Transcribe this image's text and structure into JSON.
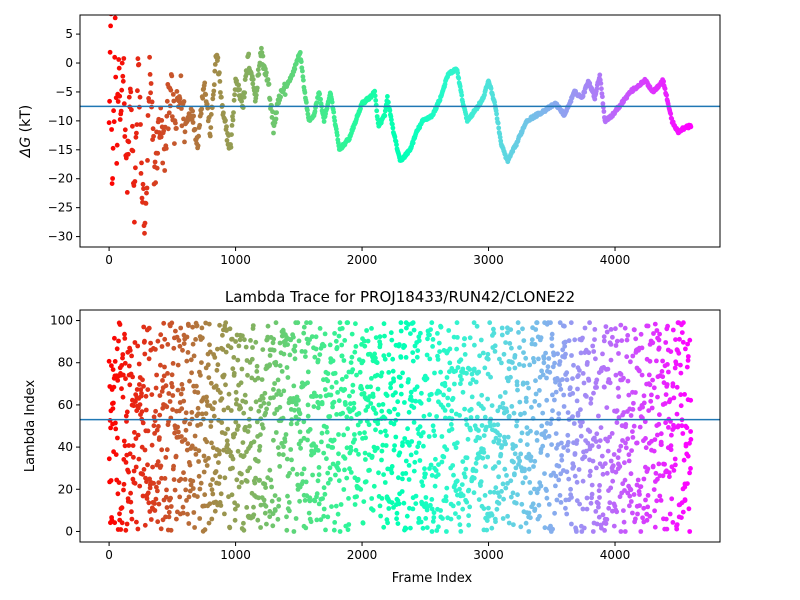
{
  "chart_data": [
    {
      "type": "scatter",
      "title": "",
      "xlabel": "",
      "ylabel": "ΔG (kT)",
      "ylabel_symbol": "ΔG",
      "ylabel_unit": " (kT)",
      "xlim": [
        -230,
        4830
      ],
      "ylim": [
        -31.8,
        8.3
      ],
      "x_ticks": [
        0,
        1000,
        2000,
        3000,
        4000
      ],
      "x_tick_labels": [
        "0",
        "1000",
        "2000",
        "3000",
        "4000"
      ],
      "y_ticks": [
        5,
        0,
        -5,
        -10,
        -15,
        -20,
        -25,
        -30
      ],
      "y_tick_labels": [
        "5",
        "0",
        "−5",
        "−10",
        "−15",
        "−20",
        "−25",
        "−30"
      ],
      "hline": -7.5,
      "hline_color": "#1f77b4",
      "colormap": "rainbow",
      "x_max": 4600,
      "trace_anchors": [
        [
          0,
          -6
        ],
        [
          15,
          8
        ],
        [
          25,
          -24
        ],
        [
          35,
          -12
        ],
        [
          50,
          6
        ],
        [
          60,
          -17
        ],
        [
          75,
          -3
        ],
        [
          90,
          -10
        ],
        [
          110,
          2
        ],
        [
          140,
          -20
        ],
        [
          170,
          -5
        ],
        [
          200,
          -26
        ],
        [
          230,
          1
        ],
        [
          260,
          -22
        ],
        [
          290,
          -28
        ],
        [
          320,
          -2
        ],
        [
          360,
          -19
        ],
        [
          400,
          -10
        ],
        [
          440,
          -16
        ],
        [
          480,
          -3
        ],
        [
          520,
          -12
        ],
        [
          560,
          -5
        ],
        [
          600,
          -11
        ],
        [
          650,
          -8
        ],
        [
          700,
          -14
        ],
        [
          750,
          -3
        ],
        [
          800,
          -12
        ],
        [
          850,
          2
        ],
        [
          900,
          -9
        ],
        [
          960,
          -15
        ],
        [
          1000,
          -3
        ],
        [
          1060,
          -7
        ],
        [
          1100,
          1
        ],
        [
          1160,
          -6
        ],
        [
          1200,
          2
        ],
        [
          1260,
          -4
        ],
        [
          1300,
          -11
        ],
        [
          1350,
          -6
        ],
        [
          1400,
          -4
        ],
        [
          1450,
          -2
        ],
        [
          1510,
          2
        ],
        [
          1540,
          -4
        ],
        [
          1580,
          -10
        ],
        [
          1620,
          -9
        ],
        [
          1660,
          -5
        ],
        [
          1700,
          -10
        ],
        [
          1750,
          -5
        ],
        [
          1820,
          -15
        ],
        [
          1900,
          -13
        ],
        [
          1950,
          -10
        ],
        [
          2000,
          -7
        ],
        [
          2060,
          -6
        ],
        [
          2100,
          -5
        ],
        [
          2130,
          -11
        ],
        [
          2180,
          -9
        ],
        [
          2200,
          -6
        ],
        [
          2250,
          -12
        ],
        [
          2300,
          -17
        ],
        [
          2380,
          -15
        ],
        [
          2430,
          -12
        ],
        [
          2480,
          -10
        ],
        [
          2560,
          -9
        ],
        [
          2620,
          -6
        ],
        [
          2680,
          -2
        ],
        [
          2750,
          -1
        ],
        [
          2790,
          -6
        ],
        [
          2830,
          -10
        ],
        [
          2900,
          -8
        ],
        [
          2960,
          -6
        ],
        [
          3000,
          -3
        ],
        [
          3050,
          -7
        ],
        [
          3100,
          -14
        ],
        [
          3150,
          -17
        ],
        [
          3220,
          -14
        ],
        [
          3300,
          -10
        ],
        [
          3380,
          -9
        ],
        [
          3460,
          -8
        ],
        [
          3530,
          -7
        ],
        [
          3600,
          -9
        ],
        [
          3680,
          -5
        ],
        [
          3740,
          -6
        ],
        [
          3790,
          -3
        ],
        [
          3840,
          -6
        ],
        [
          3880,
          -2
        ],
        [
          3920,
          -10
        ],
        [
          3980,
          -9
        ],
        [
          4050,
          -7
        ],
        [
          4120,
          -5
        ],
        [
          4180,
          -4
        ],
        [
          4240,
          -3
        ],
        [
          4300,
          -5
        ],
        [
          4380,
          -3
        ],
        [
          4450,
          -10
        ],
        [
          4500,
          -12
        ],
        [
          4560,
          -11
        ],
        [
          4600,
          -11
        ]
      ]
    },
    {
      "type": "scatter",
      "title": "Lambda Trace for PROJ18433/RUN42/CLONE22",
      "xlabel": "Frame Index",
      "ylabel": "Lambda Index",
      "xlim": [
        -230,
        4830
      ],
      "ylim": [
        -5,
        105
      ],
      "x_ticks": [
        0,
        1000,
        2000,
        3000,
        4000
      ],
      "x_tick_labels": [
        "0",
        "1000",
        "2000",
        "3000",
        "4000"
      ],
      "y_ticks": [
        0,
        20,
        40,
        60,
        80,
        100
      ],
      "y_tick_labels": [
        "0",
        "20",
        "40",
        "60",
        "80",
        "100"
      ],
      "hline": 53,
      "hline_color": "#1f77b4",
      "colormap": "rainbow",
      "x_max": 4600,
      "lambda_range": [
        0,
        99
      ]
    }
  ]
}
